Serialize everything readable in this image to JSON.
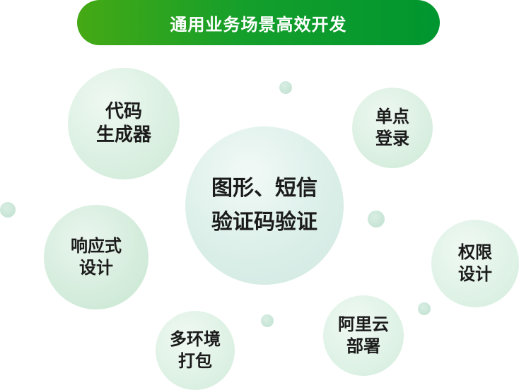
{
  "header": {
    "title": "通用业务场景高效开发"
  },
  "features": {
    "code_generator": {
      "line1": "代码",
      "line2": "生成器"
    },
    "sso": {
      "line1": "单点",
      "line2": "登录"
    },
    "captcha": {
      "line1": "图形、短信",
      "line2": "验证码验证"
    },
    "responsive": {
      "line1": "响应式",
      "line2": "设计"
    },
    "permission": {
      "line1": "权限",
      "line2": "设计"
    },
    "multi_env": {
      "line1": "多环境",
      "line2": "打包"
    },
    "aliyun_deploy": {
      "line1": "阿里云",
      "line2": "部署"
    }
  },
  "colors": {
    "title_gradient_start": "#45a914",
    "title_gradient_end": "#00962f",
    "bubble_fill": "#d7eedf",
    "text": "#1b1b1b"
  }
}
